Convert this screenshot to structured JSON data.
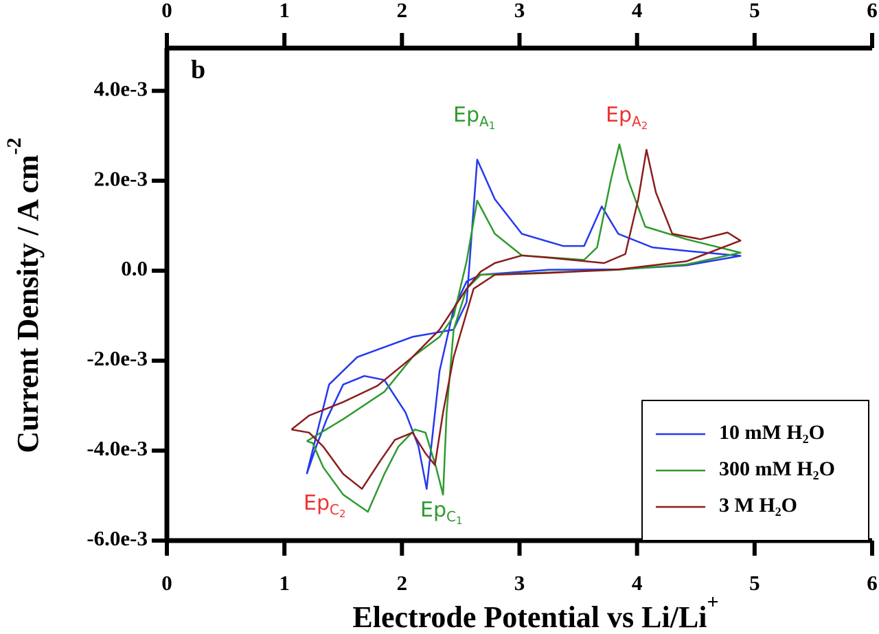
{
  "chart_data": {
    "type": "line",
    "panel_label": "b",
    "xlabel": "Electrode Potential vs Li/Li",
    "xlabel_superscript": "+",
    "ylabel": "Current Density / A cm",
    "ylabel_superscript": "-2",
    "xlim": [
      0,
      6
    ],
    "xticks": [
      0,
      1,
      2,
      3,
      4,
      5,
      6
    ],
    "ylim": [
      -0.006,
      0.00495
    ],
    "yticks": [
      {
        "value": -0.006,
        "label": "-6.0e-3"
      },
      {
        "value": -0.004,
        "label": "-4.0e-3"
      },
      {
        "value": -0.002,
        "label": "-2.0e-3"
      },
      {
        "value": 0,
        "label": "0.0"
      },
      {
        "value": 0.002,
        "label": "2.0e-3"
      },
      {
        "value": 0.004,
        "label": "4.0e-3"
      }
    ],
    "grid": false,
    "legend": "lower right",
    "series": [
      {
        "name": "10 mM H₂O",
        "color": "#2438f0",
        "x": [
          1.19,
          1.38,
          1.62,
          2.09,
          2.44,
          2.55,
          2.64,
          2.79,
          3.02,
          3.37,
          3.55,
          3.7,
          3.84,
          4.13,
          4.42,
          4.88,
          4.42,
          3.84,
          3.25,
          2.67,
          2.55,
          2.44,
          2.32,
          2.23,
          2.21,
          2.14,
          2.03,
          1.85,
          1.68,
          1.5,
          1.36,
          1.27,
          1.19
        ],
        "values": [
          -0.00452,
          -0.00253,
          -0.00192,
          -0.00147,
          -0.00131,
          -0.0007,
          0.00247,
          0.00159,
          0.00082,
          0.00055,
          0.00055,
          0.00143,
          0.00082,
          0.00052,
          0.00044,
          0.00033,
          0.00012,
          3e-05,
          2e-05,
          -9e-05,
          -0.00024,
          -0.00085,
          -0.00223,
          -0.00437,
          -0.00485,
          -0.0039,
          -0.00315,
          -0.00243,
          -0.00234,
          -0.00253,
          -0.0033,
          -0.00391,
          -0.00452
        ]
      },
      {
        "name": "300 mM H₂O",
        "color": "#2e9a2e",
        "x": [
          1.19,
          1.5,
          1.85,
          2.09,
          2.32,
          2.44,
          2.55,
          2.64,
          2.79,
          3.02,
          3.55,
          3.66,
          3.78,
          3.85,
          3.92,
          4.07,
          4.42,
          4.88,
          4.42,
          3.84,
          3.02,
          2.67,
          2.55,
          2.44,
          2.38,
          2.35,
          2.29,
          2.2,
          2.11,
          1.97,
          1.85,
          1.71,
          1.5,
          1.33,
          1.24,
          1.19
        ],
        "values": [
          -0.00379,
          -0.0033,
          -0.00269,
          -0.00192,
          -0.00147,
          -0.00101,
          0.00021,
          0.00156,
          0.00082,
          0.00034,
          0.00024,
          0.00052,
          0.00205,
          0.00281,
          0.00205,
          0.00098,
          0.0007,
          0.0004,
          0.00014,
          2e-05,
          -6e-05,
          -9e-05,
          -0.0004,
          -0.00131,
          -0.00315,
          -0.00498,
          -0.00437,
          -0.0036,
          -0.00353,
          -0.00391,
          -0.00452,
          -0.00536,
          -0.00498,
          -0.00437,
          -0.00383,
          -0.00379
        ]
      },
      {
        "name": "3 M H₂O",
        "color": "#8b1c1c",
        "x": [
          1.06,
          1.21,
          1.5,
          1.79,
          2.09,
          2.32,
          2.55,
          2.67,
          2.79,
          3.02,
          3.25,
          3.72,
          3.9,
          4.01,
          4.08,
          4.16,
          4.3,
          4.54,
          4.77,
          4.88,
          4.42,
          3.84,
          3.25,
          2.79,
          2.61,
          2.44,
          2.35,
          2.28,
          2.2,
          2.09,
          1.94,
          1.82,
          1.66,
          1.5,
          1.33,
          1.21,
          1.06
        ],
        "values": [
          -0.00353,
          -0.00322,
          -0.00292,
          -0.00256,
          -0.00192,
          -0.00131,
          -0.0004,
          -2e-05,
          0.00017,
          0.00034,
          0.00029,
          0.00017,
          0.00037,
          0.00159,
          0.00269,
          0.00174,
          0.00082,
          0.0007,
          0.00085,
          0.00067,
          0.00021,
          3e-05,
          -5e-05,
          -9e-05,
          -0.0004,
          -0.00192,
          -0.00315,
          -0.00432,
          -0.00406,
          -0.0036,
          -0.00376,
          -0.00421,
          -0.00485,
          -0.00452,
          -0.00391,
          -0.0036,
          -0.00353
        ]
      }
    ],
    "annotations": [
      {
        "text": "Ep",
        "sub": "A",
        "subsub": "1",
        "color": "#2e9a2e"
      },
      {
        "text": "Ep",
        "sub": "A",
        "subsub": "2",
        "color": "#f03232"
      },
      {
        "text": "Ep",
        "sub": "C",
        "subsub": "2",
        "color": "#f03232"
      },
      {
        "text": "Ep",
        "sub": "C",
        "subsub": "1",
        "color": "#2e9a2e"
      }
    ]
  }
}
